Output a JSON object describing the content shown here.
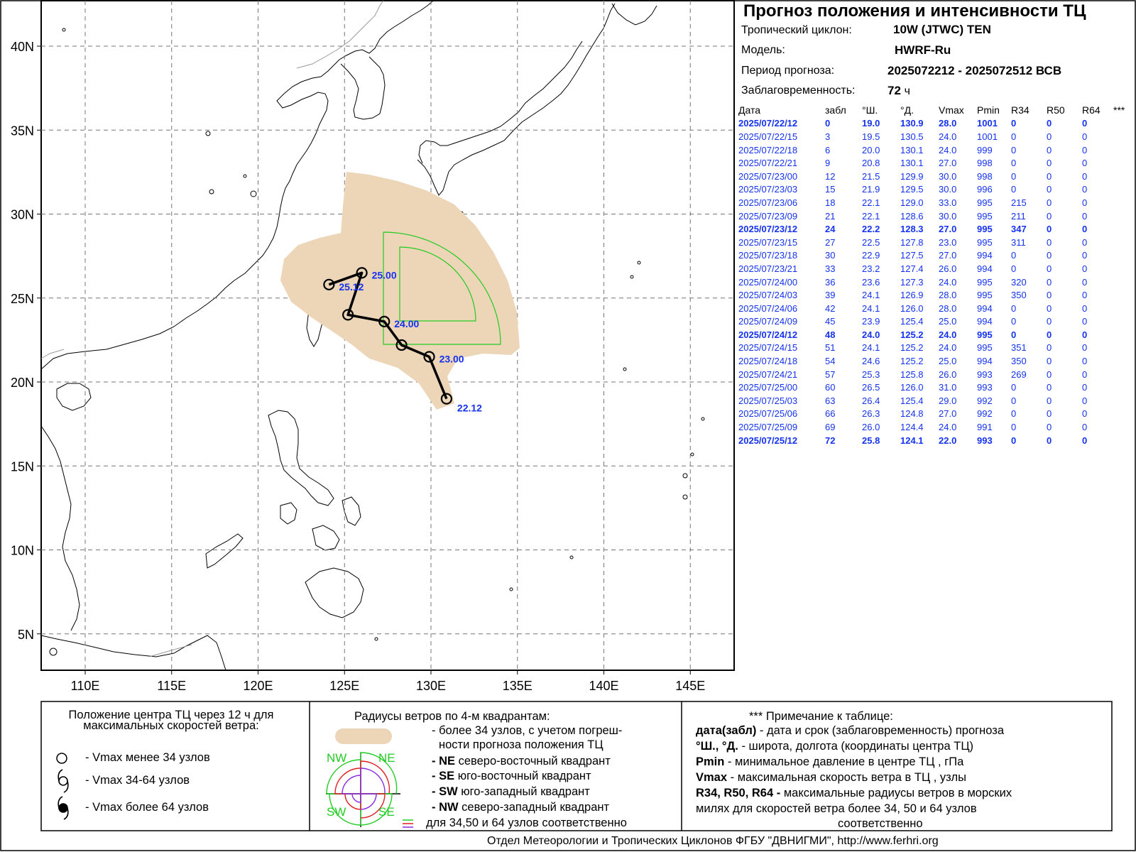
{
  "header": {
    "title": "Прогноз положения и интенсивности ТЦ",
    "cyclone_label": "Тропический циклон:",
    "cyclone_value": "10W (JTWC)  TEN",
    "model_label": "Модель:",
    "model_value": "HWRF-Ru",
    "period_label": "Период прогноза:",
    "period_value": "2025072212 - 2025072512 ВСВ",
    "lead_label": "Заблаговременность:",
    "lead_value": "72",
    "lead_unit": "ч"
  },
  "table": {
    "columns": [
      "Дата",
      "забл",
      "°Ш.",
      "°Д.",
      "Vmax",
      "Pmin",
      "R34",
      "R50",
      "R64",
      "***"
    ],
    "rows": [
      {
        "date": "2025/07/22/12",
        "lead": "0",
        "lat": "19.0",
        "lon": "130.9",
        "vmax": "28.0",
        "pmin": "1001",
        "r34": "0",
        "r50": "0",
        "r64": "0",
        "bold": true
      },
      {
        "date": "2025/07/22/15",
        "lead": "3",
        "lat": "19.5",
        "lon": "130.5",
        "vmax": "24.0",
        "pmin": "1001",
        "r34": "0",
        "r50": "0",
        "r64": "0",
        "bold": false
      },
      {
        "date": "2025/07/22/18",
        "lead": "6",
        "lat": "20.0",
        "lon": "130.1",
        "vmax": "24.0",
        "pmin": "999",
        "r34": "0",
        "r50": "0",
        "r64": "0",
        "bold": false
      },
      {
        "date": "2025/07/22/21",
        "lead": "9",
        "lat": "20.8",
        "lon": "130.1",
        "vmax": "27.0",
        "pmin": "998",
        "r34": "0",
        "r50": "0",
        "r64": "0",
        "bold": false
      },
      {
        "date": "2025/07/23/00",
        "lead": "12",
        "lat": "21.5",
        "lon": "129.9",
        "vmax": "30.0",
        "pmin": "998",
        "r34": "0",
        "r50": "0",
        "r64": "0",
        "bold": false
      },
      {
        "date": "2025/07/23/03",
        "lead": "15",
        "lat": "21.9",
        "lon": "129.5",
        "vmax": "30.0",
        "pmin": "996",
        "r34": "0",
        "r50": "0",
        "r64": "0",
        "bold": false
      },
      {
        "date": "2025/07/23/06",
        "lead": "18",
        "lat": "22.1",
        "lon": "129.0",
        "vmax": "33.0",
        "pmin": "995",
        "r34": "215",
        "r50": "0",
        "r64": "0",
        "bold": false
      },
      {
        "date": "2025/07/23/09",
        "lead": "21",
        "lat": "22.1",
        "lon": "128.6",
        "vmax": "30.0",
        "pmin": "995",
        "r34": "211",
        "r50": "0",
        "r64": "0",
        "bold": false
      },
      {
        "date": "2025/07/23/12",
        "lead": "24",
        "lat": "22.2",
        "lon": "128.3",
        "vmax": "27.0",
        "pmin": "995",
        "r34": "347",
        "r50": "0",
        "r64": "0",
        "bold": true
      },
      {
        "date": "2025/07/23/15",
        "lead": "27",
        "lat": "22.5",
        "lon": "127.8",
        "vmax": "23.0",
        "pmin": "995",
        "r34": "311",
        "r50": "0",
        "r64": "0",
        "bold": false
      },
      {
        "date": "2025/07/23/18",
        "lead": "30",
        "lat": "22.9",
        "lon": "127.5",
        "vmax": "27.0",
        "pmin": "994",
        "r34": "0",
        "r50": "0",
        "r64": "0",
        "bold": false
      },
      {
        "date": "2025/07/23/21",
        "lead": "33",
        "lat": "23.2",
        "lon": "127.4",
        "vmax": "26.0",
        "pmin": "994",
        "r34": "0",
        "r50": "0",
        "r64": "0",
        "bold": false
      },
      {
        "date": "2025/07/24/00",
        "lead": "36",
        "lat": "23.6",
        "lon": "127.3",
        "vmax": "24.0",
        "pmin": "995",
        "r34": "320",
        "r50": "0",
        "r64": "0",
        "bold": false
      },
      {
        "date": "2025/07/24/03",
        "lead": "39",
        "lat": "24.1",
        "lon": "126.9",
        "vmax": "28.0",
        "pmin": "995",
        "r34": "350",
        "r50": "0",
        "r64": "0",
        "bold": false
      },
      {
        "date": "2025/07/24/06",
        "lead": "42",
        "lat": "24.1",
        "lon": "126.0",
        "vmax": "28.0",
        "pmin": "994",
        "r34": "0",
        "r50": "0",
        "r64": "0",
        "bold": false
      },
      {
        "date": "2025/07/24/09",
        "lead": "45",
        "lat": "23.9",
        "lon": "125.4",
        "vmax": "25.0",
        "pmin": "994",
        "r34": "0",
        "r50": "0",
        "r64": "0",
        "bold": false
      },
      {
        "date": "2025/07/24/12",
        "lead": "48",
        "lat": "24.0",
        "lon": "125.2",
        "vmax": "24.0",
        "pmin": "995",
        "r34": "0",
        "r50": "0",
        "r64": "0",
        "bold": true
      },
      {
        "date": "2025/07/24/15",
        "lead": "51",
        "lat": "24.1",
        "lon": "125.2",
        "vmax": "24.0",
        "pmin": "995",
        "r34": "351",
        "r50": "0",
        "r64": "0",
        "bold": false
      },
      {
        "date": "2025/07/24/18",
        "lead": "54",
        "lat": "24.6",
        "lon": "125.2",
        "vmax": "25.0",
        "pmin": "994",
        "r34": "350",
        "r50": "0",
        "r64": "0",
        "bold": false
      },
      {
        "date": "2025/07/24/21",
        "lead": "57",
        "lat": "25.3",
        "lon": "125.8",
        "vmax": "26.0",
        "pmin": "993",
        "r34": "269",
        "r50": "0",
        "r64": "0",
        "bold": false
      },
      {
        "date": "2025/07/25/00",
        "lead": "60",
        "lat": "26.5",
        "lon": "126.0",
        "vmax": "31.0",
        "pmin": "993",
        "r34": "0",
        "r50": "0",
        "r64": "0",
        "bold": false
      },
      {
        "date": "2025/07/25/03",
        "lead": "63",
        "lat": "26.4",
        "lon": "125.4",
        "vmax": "29.0",
        "pmin": "992",
        "r34": "0",
        "r50": "0",
        "r64": "0",
        "bold": false
      },
      {
        "date": "2025/07/25/06",
        "lead": "66",
        "lat": "26.3",
        "lon": "124.8",
        "vmax": "27.0",
        "pmin": "992",
        "r34": "0",
        "r50": "0",
        "r64": "0",
        "bold": false
      },
      {
        "date": "2025/07/25/09",
        "lead": "69",
        "lat": "26.0",
        "lon": "124.4",
        "vmax": "24.0",
        "pmin": "991",
        "r34": "0",
        "r50": "0",
        "r64": "0",
        "bold": false
      },
      {
        "date": "2025/07/25/12",
        "lead": "72",
        "lat": "25.8",
        "lon": "124.1",
        "vmax": "22.0",
        "pmin": "993",
        "r34": "0",
        "r50": "0",
        "r64": "0",
        "bold": true
      }
    ]
  },
  "map": {
    "lat_ticks": [
      {
        "v": 40,
        "label": "40N"
      },
      {
        "v": 35,
        "label": "35N"
      },
      {
        "v": 30,
        "label": "30N"
      },
      {
        "v": 25,
        "label": "25N"
      },
      {
        "v": 20,
        "label": "20N"
      },
      {
        "v": 15,
        "label": "15N"
      },
      {
        "v": 10,
        "label": "10N"
      },
      {
        "v": 5,
        "label": "5N"
      }
    ],
    "lon_ticks": [
      {
        "v": 110,
        "label": "110E"
      },
      {
        "v": 115,
        "label": "115E"
      },
      {
        "v": 120,
        "label": "120E"
      },
      {
        "v": 125,
        "label": "125E"
      },
      {
        "v": 130,
        "label": "130E"
      },
      {
        "v": 135,
        "label": "135E"
      },
      {
        "v": 140,
        "label": "140E"
      },
      {
        "v": 145,
        "label": "145E"
      }
    ],
    "track": [
      {
        "lat": 19.0,
        "lon": 130.9,
        "label": "22.12"
      },
      {
        "lat": 21.5,
        "lon": 129.9,
        "label": "23.00"
      },
      {
        "lat": 22.2,
        "lon": 128.3,
        "label": ""
      },
      {
        "lat": 23.6,
        "lon": 127.3,
        "label": "24.00"
      },
      {
        "lat": 24.0,
        "lon": 125.2,
        "label": ""
      },
      {
        "lat": 26.5,
        "lon": 126.0,
        "label": "25.00"
      },
      {
        "lat": 25.8,
        "lon": 124.1,
        "label": "25.12"
      }
    ],
    "track_color": "#000000",
    "label_color": "#1432f0",
    "uncertainty_color": "#edd5b8",
    "wind_radius_color": "#22cc22"
  },
  "legend": {
    "left_title": "Положение центра ТЦ через 12 ч для максимальных скоростей ветра:",
    "left_items": [
      {
        "icon": "open-circle-icon",
        "text": "- Vmax  менее 34 узлов"
      },
      {
        "icon": "typhoon-outline-icon",
        "text": "- Vmax  34-64 узлов"
      },
      {
        "icon": "typhoon-filled-icon",
        "text": "- Vmax  более 64 узлов"
      }
    ],
    "mid_title": "Радиусы ветров по 4-м квадрантам:",
    "mid_items": [
      {
        "bold": "",
        "text": "- более 34 узлов, с учетом погреш-"
      },
      {
        "bold": "",
        "text": "ности прогноза положения ТЦ"
      },
      {
        "bold": "- NE",
        "text": "северо-восточный квадрант"
      },
      {
        "bold": "- SE",
        "text": "юго-восточный квадрант"
      },
      {
        "bold": "- SW",
        "text": "юго-западный квадрант"
      },
      {
        "bold": "- NW",
        "text": "северо-западный квадрант"
      },
      {
        "bold": "",
        "text": "для 34,50 и 64 узлов соответственно"
      }
    ],
    "quadrants": [
      "NW",
      "NE",
      "SW",
      "SE"
    ],
    "radius_colors": [
      "#22cc22",
      "#e02020",
      "#8a2be2"
    ],
    "right_title": "*** Примечание к таблице:",
    "right_items": [
      {
        "bold": "дата(забл)",
        "text": " - дата и срок (заблаговременность) прогноза"
      },
      {
        "bold": "°Ш., °Д.",
        "text": " - широта, долгота   (координаты центра ТЦ)"
      },
      {
        "bold": "Pmin",
        "text": "  - минимальное давление в центре ТЦ , гПа"
      },
      {
        "bold": "Vmax",
        "text": "   -  максимальная скорость ветра в ТЦ , узлы"
      },
      {
        "bold": "R34, R50, R64 -",
        "text": "  максимальные радиусы ветров в морских"
      },
      {
        "bold": "",
        "text": "милях для скоростей ветра более 34, 50 и 64 узлов"
      },
      {
        "bold": "",
        "text": "соответственно"
      }
    ]
  },
  "footer": "Отдел Метеорологии и Тропических Циклонов ФГБУ \"ДВНИГМИ\",  http://www.ferhri.org"
}
